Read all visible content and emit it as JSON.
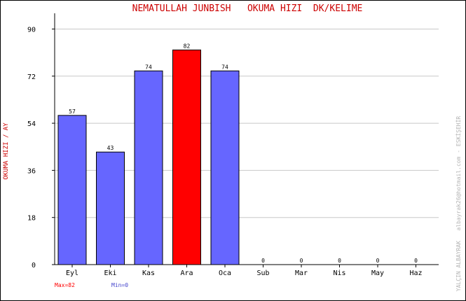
{
  "chart_data": {
    "type": "bar",
    "title": "NEMATULLAH JUNBISH   OKUMA HIZI  DK/KELIME",
    "ylabel": "OKUMA HIZI / AY",
    "xlabel": "",
    "categories": [
      "Eyl",
      "Eki",
      "Kas",
      "Ara",
      "Oca",
      "Sub",
      "Mar",
      "Nis",
      "May",
      "Haz"
    ],
    "values": [
      57,
      43,
      74,
      82,
      74,
      0,
      0,
      0,
      0,
      0
    ],
    "ylim": [
      0,
      96
    ],
    "yticks": [
      0,
      18,
      36,
      54,
      72,
      90
    ],
    "grid": true,
    "max_label": "Max=82",
    "min_label": "Min=0",
    "watermark": "YALÇIN ALBAYRAK   albayrak26@hotmail.com - ESKİŞEHİR",
    "colors": {
      "bar": "#6666ff",
      "max_bar": "#ff0000",
      "title": "#cc0000",
      "ylabel": "#cc0000",
      "max_text": "#ff0000",
      "min_text": "#4444cc",
      "grid": "#c8c8c8",
      "watermark": "#b4b4b4"
    }
  }
}
